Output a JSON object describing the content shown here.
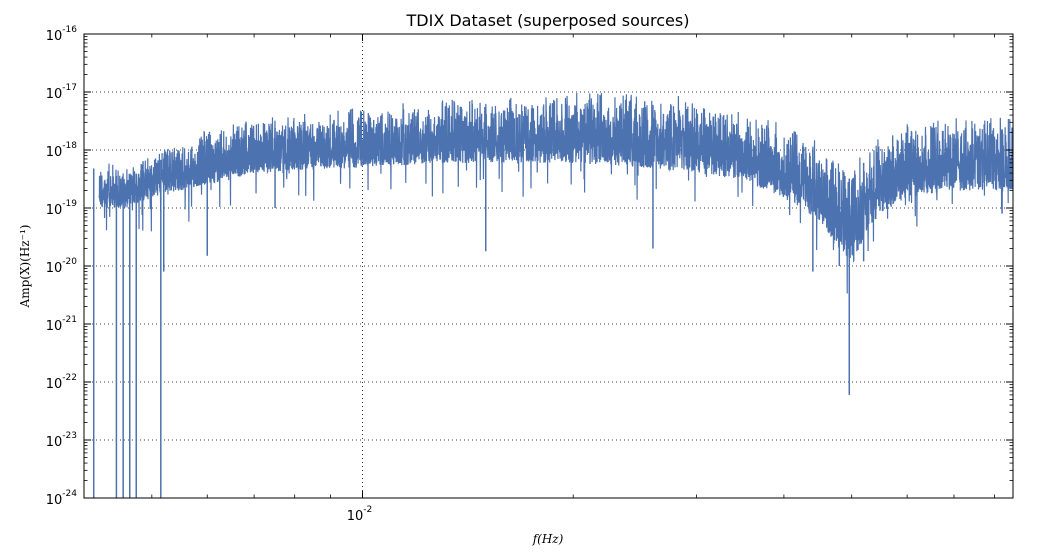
{
  "chart_data": {
    "type": "line",
    "title": "TDIX Dataset (superposed sources)",
    "xlabel": "f(Hz)",
    "ylabel": "Amp(X)(Hz⁻¹)",
    "x_scale": "log",
    "y_scale": "log",
    "xlim": [
      0.004,
      0.085
    ],
    "ylim": [
      1e-24,
      1e-16
    ],
    "grid": true,
    "line_color": "#4c72b0",
    "x_ticks": [
      {
        "value": 0.01,
        "label_base": "10",
        "label_exp": "-2"
      }
    ],
    "y_ticks": [
      {
        "value": 1e-16,
        "label_base": "10",
        "label_exp": "-16"
      },
      {
        "value": 1e-17,
        "label_base": "10",
        "label_exp": "-17"
      },
      {
        "value": 1e-18,
        "label_base": "10",
        "label_exp": "-18"
      },
      {
        "value": 1e-19,
        "label_base": "10",
        "label_exp": "-19"
      },
      {
        "value": 1e-20,
        "label_base": "10",
        "label_exp": "-20"
      },
      {
        "value": 1e-21,
        "label_base": "10",
        "label_exp": "-21"
      },
      {
        "value": 1e-22,
        "label_base": "10",
        "label_exp": "-22"
      },
      {
        "value": 1e-23,
        "label_base": "10",
        "label_exp": "-23"
      },
      {
        "value": 1e-24,
        "label_base": "10",
        "label_exp": "-24"
      }
    ],
    "series": [
      {
        "name": "",
        "envelope_upper": [
          [
            0.0042,
            8e-19
          ],
          [
            0.0046,
            5e-19
          ],
          [
            0.005,
            1e-18
          ],
          [
            0.0055,
            1.5e-18
          ],
          [
            0.006,
            2.5e-18
          ],
          [
            0.007,
            3.5e-18
          ],
          [
            0.008,
            4.5e-18
          ],
          [
            0.01,
            6e-18
          ],
          [
            0.013,
            8e-18
          ],
          [
            0.017,
            9e-18
          ],
          [
            0.02,
            1e-17
          ],
          [
            0.023,
            1.2e-17
          ],
          [
            0.026,
            1e-17
          ],
          [
            0.03,
            8e-18
          ],
          [
            0.035,
            5e-18
          ],
          [
            0.04,
            3e-18
          ],
          [
            0.045,
            1.5e-18
          ],
          [
            0.048,
            7e-19
          ],
          [
            0.05,
            5e-19
          ],
          [
            0.052,
            1e-18
          ],
          [
            0.055,
            2e-18
          ],
          [
            0.06,
            3e-18
          ],
          [
            0.07,
            4e-18
          ],
          [
            0.08,
            4e-18
          ],
          [
            0.085,
            3.5e-18
          ]
        ],
        "envelope_lower": [
          [
            0.0046,
            1e-19
          ],
          [
            0.005,
            1.5e-19
          ],
          [
            0.006,
            2.5e-19
          ],
          [
            0.007,
            4e-19
          ],
          [
            0.01,
            5e-19
          ],
          [
            0.013,
            6e-19
          ],
          [
            0.017,
            6e-19
          ],
          [
            0.02,
            6e-19
          ],
          [
            0.025,
            5e-19
          ],
          [
            0.03,
            4e-19
          ],
          [
            0.035,
            3e-19
          ],
          [
            0.04,
            1.5e-19
          ],
          [
            0.045,
            6e-20
          ],
          [
            0.048,
            2e-20
          ],
          [
            0.05,
            1e-20
          ],
          [
            0.052,
            3e-20
          ],
          [
            0.055,
            8e-20
          ],
          [
            0.06,
            1.5e-19
          ],
          [
            0.07,
            2e-19
          ],
          [
            0.085,
            2e-19
          ]
        ],
        "dips": [
          [
            0.00413,
            1e-24
          ],
          [
            0.00445,
            1e-24
          ],
          [
            0.00455,
            1e-24
          ],
          [
            0.00465,
            1e-24
          ],
          [
            0.00475,
            1e-24
          ],
          [
            0.00515,
            1e-24
          ],
          [
            0.0052,
            8e-21
          ],
          [
            0.006,
            1.5e-20
          ],
          [
            0.0075,
            1e-19
          ],
          [
            0.015,
            1.8e-20
          ],
          [
            0.026,
            2e-20
          ],
          [
            0.044,
            8e-21
          ],
          [
            0.048,
            1e-20
          ],
          [
            0.0496,
            6e-23
          ],
          [
            0.052,
            1.2e-20
          ],
          [
            0.082,
            8e-20
          ]
        ]
      }
    ]
  }
}
